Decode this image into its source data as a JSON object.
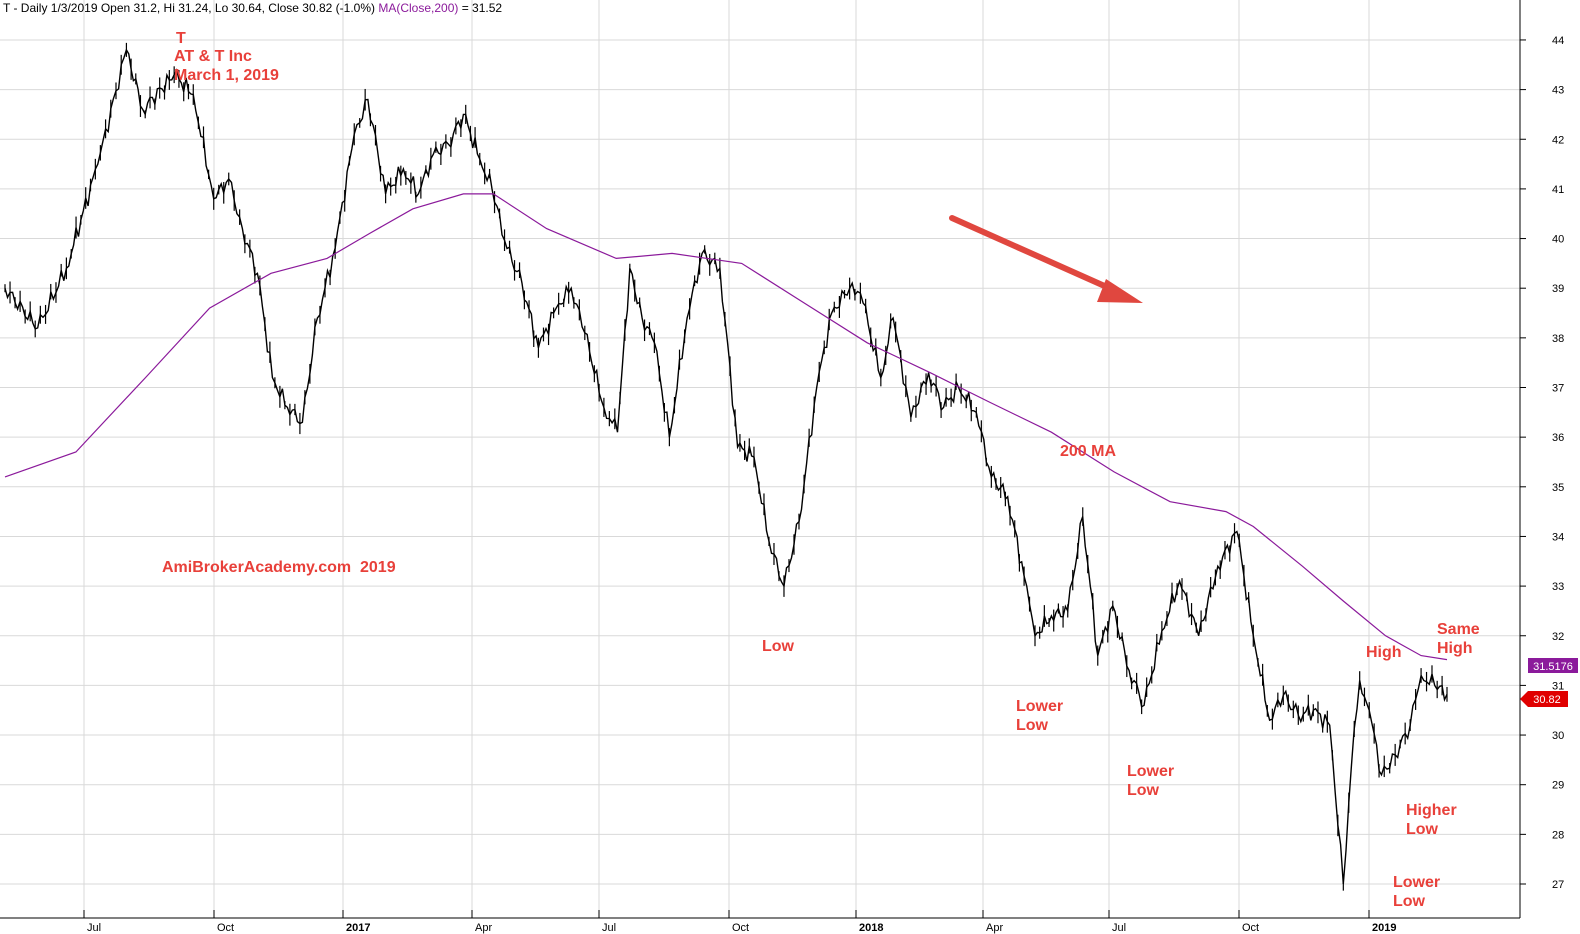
{
  "header": {
    "text": "T - Daily 1/3/2019 Open 31.2, Hi 31.24, Lo 30.64, Close 30.82 (-1.0%)",
    "ma_text": "MA(Close,200)",
    "ma_value_text": " = 31.52"
  },
  "annotations": {
    "ticker": "T",
    "company": "AT & T Inc",
    "date": "March 1, 2019",
    "watermark": "AmiBrokerAcademy.com  2019",
    "ma_label": "200 MA",
    "low": "Low",
    "lower_low_1": "Lower\nLow",
    "lower_low_2": "Lower\nLow",
    "high": "High",
    "same_high": "Same\nHigh",
    "higher_low": "Higher\nLow",
    "lower_low_3": "Lower\nLow"
  },
  "price_tags": {
    "ma": "31.5176",
    "close": "30.82"
  },
  "colors": {
    "price": "#000000",
    "ma": "#8b1a9b",
    "annotation": "#e8403a",
    "arrow": "#e0473f",
    "grid": "#d9d9d9",
    "close_tag": "#e00000",
    "ma_tag": "#8b1a9b"
  },
  "chart_data": {
    "type": "line",
    "title": "T - Daily 1/3/2019",
    "x_labels": [
      "Jul",
      "Oct",
      "2017",
      "Apr",
      "Jul",
      "Oct",
      "2018",
      "Apr",
      "Jul",
      "Oct",
      "2019"
    ],
    "ylim": [
      26.5,
      44.6
    ],
    "y_ticks": [
      27,
      28,
      29,
      30,
      31,
      32,
      33,
      34,
      35,
      36,
      37,
      38,
      39,
      40,
      41,
      42,
      43,
      44
    ],
    "grid": true,
    "series": [
      {
        "name": "T",
        "x": [
          "2016-04-08",
          "2016-05-02",
          "2016-05-23",
          "2016-06-15",
          "2016-07-06",
          "2016-07-18",
          "2016-08-10",
          "2016-08-24",
          "2016-09-08",
          "2016-09-19",
          "2016-09-29",
          "2016-10-10",
          "2016-10-21",
          "2016-11-01",
          "2016-11-12",
          "2016-11-23",
          "2016-12-06",
          "2016-12-20",
          "2016-12-30",
          "2017-01-12",
          "2017-01-25",
          "2017-02-05",
          "2017-02-16",
          "2017-02-27",
          "2017-03-10",
          "2017-03-22",
          "2017-03-31",
          "2017-04-11",
          "2017-04-22",
          "2017-05-04",
          "2017-05-17",
          "2017-05-28",
          "2017-06-07",
          "2017-06-21",
          "2017-07-01",
          "2017-07-10",
          "2017-07-19",
          "2017-07-28",
          "2017-08-08",
          "2017-08-21",
          "2017-09-01",
          "2017-09-14",
          "2017-09-27",
          "2017-10-09",
          "2017-10-20",
          "2017-10-31",
          "2017-11-11",
          "2017-11-24",
          "2017-12-05",
          "2017-12-20",
          "2017-12-28",
          "2018-01-10",
          "2018-01-19",
          "2018-02-01",
          "2018-02-14",
          "2018-02-25",
          "2018-03-08",
          "2018-03-21",
          "2018-04-01",
          "2018-04-13",
          "2018-04-25",
          "2018-05-03",
          "2018-05-15",
          "2018-05-27",
          "2018-06-07",
          "2018-06-18",
          "2018-06-29",
          "2018-07-11",
          "2018-07-22",
          "2018-08-04",
          "2018-08-17",
          "2018-08-31",
          "2018-09-14",
          "2018-09-28",
          "2018-10-10",
          "2018-10-22",
          "2018-11-01",
          "2018-11-12",
          "2018-11-23",
          "2018-12-05",
          "2018-12-15",
          "2018-12-21",
          "2018-12-27",
          "2019-01-03",
          "2019-01-12",
          "2019-01-22",
          "2019-02-02",
          "2019-02-10",
          "2019-02-20",
          "2019-03-01"
        ],
        "values": [
          39.0,
          38.2,
          39.4,
          41.5,
          43.8,
          42.6,
          43.3,
          42.9,
          40.8,
          41.2,
          40.2,
          39.3,
          37.2,
          36.6,
          36.3,
          38.4,
          39.8,
          42.1,
          42.8,
          40.9,
          41.4,
          40.9,
          41.7,
          41.9,
          42.5,
          41.6,
          41.0,
          39.8,
          39.1,
          37.8,
          38.6,
          39.0,
          38.1,
          36.6,
          36.1,
          39.4,
          38.4,
          37.9,
          36.0,
          38.4,
          39.7,
          39.4,
          35.8,
          35.6,
          33.9,
          33.0,
          34.3,
          37.0,
          38.5,
          39.1,
          38.7,
          37.2,
          38.4,
          36.4,
          37.3,
          36.6,
          37.0,
          36.5,
          35.2,
          34.8,
          33.2,
          32.0,
          32.4,
          32.5,
          34.4,
          31.6,
          32.6,
          31.3,
          30.6,
          32.1,
          33.1,
          32.0,
          33.4,
          34.1,
          32.0,
          30.3,
          30.8,
          30.4,
          30.5,
          30.2,
          27.0,
          29.4,
          31.1,
          30.5,
          29.2,
          29.6,
          30.2,
          31.2,
          31.0,
          30.82
        ]
      },
      {
        "name": "MA(Close,200)",
        "x": [
          "2016-04-08",
          "2016-05-30",
          "2016-07-20",
          "2016-09-05",
          "2016-10-20",
          "2016-11-30",
          "2016-12-31",
          "2017-02-01",
          "2017-03-10",
          "2017-04-01",
          "2017-05-10",
          "2017-06-30",
          "2017-08-10",
          "2017-09-30",
          "2017-11-15",
          "2017-12-31",
          "2018-02-15",
          "2018-03-31",
          "2018-05-15",
          "2018-06-30",
          "2018-08-10",
          "2018-09-20",
          "2018-10-10",
          "2018-11-15",
          "2018-12-15",
          "2019-01-15",
          "2019-02-10",
          "2019-03-01"
        ],
        "values": [
          35.2,
          35.7,
          37.2,
          38.6,
          39.3,
          39.6,
          40.1,
          40.6,
          40.9,
          40.9,
          40.2,
          39.6,
          39.7,
          39.5,
          38.7,
          37.9,
          37.3,
          36.7,
          36.1,
          35.3,
          34.7,
          34.5,
          34.2,
          33.4,
          32.7,
          32.0,
          31.6,
          31.52
        ]
      }
    ]
  }
}
